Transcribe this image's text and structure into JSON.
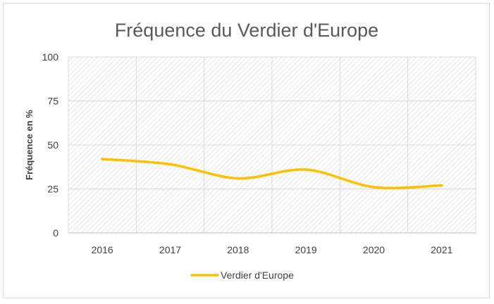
{
  "chart_data": {
    "type": "line",
    "title": "Fréquence du Verdier d'Europe",
    "xlabel": "",
    "ylabel": "Fréquence en %",
    "categories": [
      "2016",
      "2017",
      "2018",
      "2019",
      "2020",
      "2021"
    ],
    "series": [
      {
        "name": "Verdier d'Europe",
        "values": [
          42,
          39,
          31,
          36,
          26,
          27
        ],
        "color": "#ffc000"
      }
    ],
    "ylim": [
      0,
      100
    ],
    "yticks": [
      "0",
      "25",
      "50",
      "75",
      "100"
    ],
    "grid": true,
    "smooth": true,
    "plot_background": "hatched",
    "legend": "bottom"
  }
}
